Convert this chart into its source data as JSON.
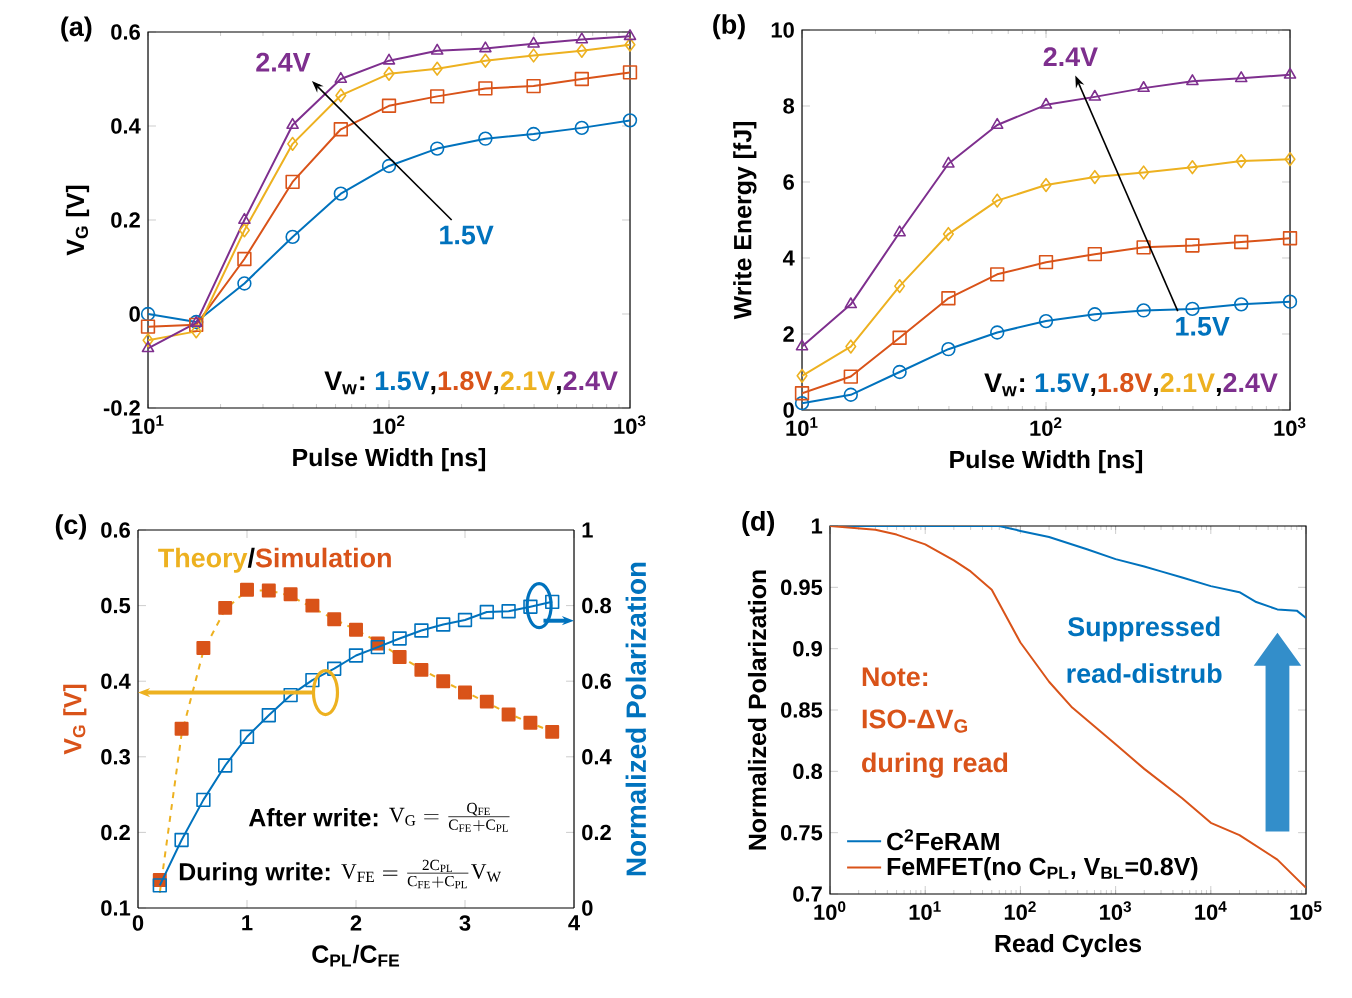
{
  "chart_data": [
    {
      "type": "line",
      "title": "(a)",
      "xlabel": "Pulse Width [ns]",
      "ylabel": "V$_{G}$ [V]",
      "log": "x",
      "xlim": [
        10,
        1000
      ],
      "xticks": [
        {
          "value": 10,
          "label": "10$^{1}$"
        },
        {
          "value": 100,
          "label": "10$^{2}$"
        },
        {
          "value": 1000,
          "label": "10$^{3}$"
        }
      ],
      "ylim": [
        -0.2,
        0.6
      ],
      "yticks": [
        -0.2,
        0,
        0.2,
        0.4,
        0.6
      ],
      "legend": "bottom right",
      "legend_title": "V$_{w}$:",
      "annotations": [
        "2.4V",
        "1.5V",
        ",",
        ",",
        ","
      ],
      "x": [
        10,
        15.85,
        25.12,
        39.81,
        63.1,
        100,
        158.5,
        251.2,
        398.1,
        631,
        1000
      ],
      "series": [
        {
          "name": "1.5V",
          "color": "#0072bd",
          "marker": "circle",
          "values": [
            0.0,
            -0.017,
            0.065,
            0.164,
            0.256,
            0.315,
            0.352,
            0.373,
            0.383,
            0.396,
            0.412
          ]
        },
        {
          "name": "1.8V",
          "color": "#d95319",
          "marker": "square",
          "values": [
            -0.027,
            -0.023,
            0.117,
            0.281,
            0.393,
            0.443,
            0.463,
            0.48,
            0.485,
            0.5,
            0.514
          ]
        },
        {
          "name": "2.1V",
          "color": "#edb120",
          "marker": "diamond",
          "values": [
            -0.056,
            -0.037,
            0.178,
            0.362,
            0.465,
            0.511,
            0.522,
            0.539,
            0.55,
            0.56,
            0.573
          ]
        },
        {
          "name": "2.4V",
          "color": "#7e2f8e",
          "marker": "triangle",
          "values": [
            -0.073,
            -0.019,
            0.2,
            0.402,
            0.5,
            0.539,
            0.56,
            0.565,
            0.575,
            0.584,
            0.591
          ]
        }
      ]
    },
    {
      "type": "line",
      "title": "(b)",
      "xlabel": "Pulse Width [ns]",
      "ylabel": "Write Energy [fJ]",
      "log": "x",
      "xlim": [
        10,
        1000
      ],
      "xticks": [
        {
          "value": 10,
          "label": "10$^{1}$"
        },
        {
          "value": 100,
          "label": "10$^{2}$"
        },
        {
          "value": 1000,
          "label": "10$^{3}$"
        }
      ],
      "ylim": [
        0,
        10
      ],
      "yticks": [
        0,
        2,
        4,
        6,
        8,
        10
      ],
      "legend": "bottom right",
      "legend_title": "V$_{w}$:",
      "annotations": [
        "2.4V",
        "1.5V",
        ",",
        ",",
        ","
      ],
      "x": [
        10,
        15.85,
        25.12,
        39.81,
        63.1,
        100,
        158.5,
        251.2,
        398.1,
        631,
        1000
      ],
      "series": [
        {
          "name": "1.5V",
          "color": "#0072bd",
          "marker": "circle",
          "values": [
            0.18,
            0.4,
            1.0,
            1.6,
            2.04,
            2.34,
            2.52,
            2.62,
            2.66,
            2.78,
            2.85
          ]
        },
        {
          "name": "1.8V",
          "color": "#d95319",
          "marker": "square",
          "values": [
            0.44,
            0.88,
            1.9,
            2.94,
            3.57,
            3.89,
            4.1,
            4.28,
            4.33,
            4.42,
            4.52
          ]
        },
        {
          "name": "2.1V",
          "color": "#edb120",
          "marker": "diamond",
          "values": [
            0.9,
            1.67,
            3.26,
            4.63,
            5.51,
            5.92,
            6.13,
            6.25,
            6.39,
            6.55,
            6.6
          ]
        },
        {
          "name": "2.4V",
          "color": "#7e2f8e",
          "marker": "triangle",
          "values": [
            1.67,
            2.78,
            4.67,
            6.48,
            7.5,
            8.03,
            8.24,
            8.47,
            8.65,
            8.73,
            8.82
          ]
        }
      ]
    },
    {
      "type": "line",
      "title": "(c)",
      "xlabel": "C$_{PL}$/C$_{FE}$",
      "ylabel": "V$_{G}$ [V]",
      "y2label": "Normalized Polarization",
      "xlim": [
        0,
        4
      ],
      "xticks": [
        0,
        1,
        2,
        3,
        4
      ],
      "ylim": [
        0.1,
        0.6
      ],
      "yticks": [
        0.1,
        0.2,
        0.3,
        0.4,
        0.5,
        0.6
      ],
      "y2lim": [
        0,
        1
      ],
      "y2ticks": [
        0,
        0.2,
        0.4,
        0.6,
        0.8,
        1
      ],
      "legend": "top left",
      "annotations": [
        "After write:",
        "\\mathrm{V_{G}}=\\frac{\\mathrm{Q_{FE}}}{\\mathrm{C_{FE}}+\\mathrm{C_{PL}}}",
        "During write:",
        "\\mathrm{V_{FE}}=\\frac{\\mathrm{2C_{PL}}}{\\mathrm{C_{FE}}+\\mathrm{C_{PL}}}\\mathrm{V_{W}}",
        "/"
      ],
      "x": [
        0.2,
        0.4,
        0.6,
        0.8,
        1.0,
        1.2,
        1.4,
        1.6,
        1.8,
        2.0,
        2.2,
        2.4,
        2.6,
        2.8,
        3.0,
        3.2,
        3.4,
        3.6,
        3.8
      ],
      "series": [
        {
          "name": "Theory",
          "color": "#edb120",
          "marker": "none",
          "line_style": "dashed",
          "values": [
            0.12,
            0.33,
            0.44,
            0.495,
            0.52,
            0.52,
            0.513,
            0.497,
            0.482,
            0.468,
            0.452,
            0.433,
            0.416,
            0.4,
            0.386,
            0.372,
            0.357,
            0.345,
            0.333
          ]
        },
        {
          "name": "Simulation",
          "type": "scatter",
          "color": "#d95319",
          "marker": "square",
          "values": [
            0.137,
            0.337,
            0.444,
            0.497,
            0.521,
            0.52,
            0.515,
            0.5,
            0.482,
            0.468,
            0.45,
            0.432,
            0.415,
            0.4,
            0.385,
            0.373,
            0.356,
            0.345,
            0.333
          ]
        },
        {
          "color": "#0072bd",
          "marker": "square",
          "axis": "y2",
          "values": [
            0.06,
            0.18,
            0.286,
            0.377,
            0.453,
            0.51,
            0.563,
            0.603,
            0.633,
            0.668,
            0.69,
            0.713,
            0.734,
            0.75,
            0.762,
            0.783,
            0.785,
            0.797,
            0.81
          ]
        }
      ]
    },
    {
      "type": "line",
      "title": "(d)",
      "xlabel": "Read Cycles",
      "ylabel": "Normalized Polarization",
      "log": "x",
      "xlim": [
        1,
        100000
      ],
      "xticks": [
        {
          "value": 1,
          "label": "10$^{0}$"
        },
        {
          "value": 10,
          "label": "10$^{1}$"
        },
        {
          "value": 100,
          "label": "10$^{2}$"
        },
        {
          "value": 1000,
          "label": "10$^{3}$"
        },
        {
          "value": 10000,
          "label": "10$^{4}$"
        },
        {
          "value": 100000,
          "label": "10$^{5}$"
        }
      ],
      "ylim": [
        0.7,
        1
      ],
      "yticks": [
        0.7,
        0.75,
        0.8,
        0.85,
        0.9,
        0.95,
        1
      ],
      "legend": "bottom left",
      "annotations": [
        "Note:",
        "ISO-ΔV$_{G}$",
        "during read",
        "Suppressed",
        "read-distrub"
      ],
      "series": [
        {
          "name": "C$^{2}$FeRAM",
          "color": "#0072bd",
          "marker": "none",
          "x": [
            1,
            10,
            60,
            100,
            200,
            500,
            1000,
            2000,
            3000,
            5000,
            10000,
            20000,
            30000,
            50000,
            80000,
            100000
          ],
          "values": [
            1,
            1,
            1,
            0.996,
            0.991,
            0.981,
            0.973,
            0.967,
            0.963,
            0.958,
            0.951,
            0.946,
            0.938,
            0.932,
            0.931,
            0.925
          ]
        },
        {
          "name": "FeMFET(no C$_{PL}$, V$_{BL}$=0.8V)",
          "color": "#d95319",
          "marker": "none",
          "x": [
            1,
            3,
            5,
            10,
            20,
            30,
            50,
            100,
            200,
            350,
            1000,
            2000,
            5000,
            10000,
            20000,
            50000,
            100000
          ],
          "values": [
            1,
            0.997,
            0.993,
            0.985,
            0.972,
            0.963,
            0.948,
            0.905,
            0.873,
            0.852,
            0.822,
            0.802,
            0.778,
            0.758,
            0.748,
            0.728,
            0.705
          ]
        }
      ]
    }
  ]
}
